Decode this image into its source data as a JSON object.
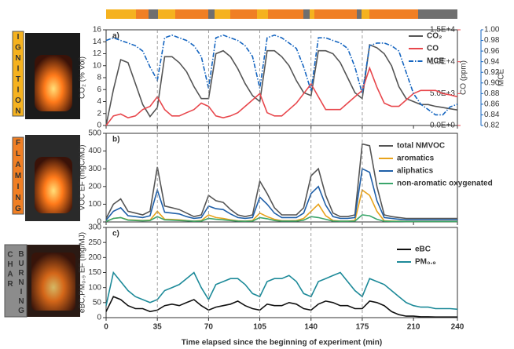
{
  "side_labels": [
    "IGNITION",
    "FLAMING",
    "CHAR",
    "BURNING"
  ],
  "chart_data": [
    {
      "type": "line",
      "panel_label": "a)",
      "ylabel": "CO₂ (% Vol)",
      "y2label": "CO (ppm)",
      "y3label": "MCE",
      "legend_position": "upper right",
      "xlim": [
        0,
        240
      ],
      "x": [
        0,
        5,
        10,
        15,
        20,
        25,
        30,
        35,
        40,
        45,
        50,
        55,
        60,
        65,
        70,
        75,
        80,
        85,
        90,
        95,
        100,
        105,
        110,
        115,
        120,
        125,
        130,
        135,
        140,
        145,
        150,
        155,
        160,
        165,
        170,
        175,
        180,
        185,
        190,
        195,
        200,
        205,
        210,
        215,
        220,
        225,
        230,
        235,
        240
      ],
      "ylim": [
        0,
        16
      ],
      "yticks": [
        0,
        2,
        4,
        6,
        8,
        10,
        12,
        14,
        16
      ],
      "y2lim": [
        0,
        15000
      ],
      "y2ticks": [
        {
          "value": 0,
          "label": "0.0E+0"
        },
        {
          "value": 5000,
          "label": "5.0E+3"
        },
        {
          "value": 10000,
          "label": "1.0E+4"
        },
        {
          "value": 15000,
          "label": "1.5E+4"
        }
      ],
      "y3lim": [
        0.82,
        1.0
      ],
      "y3ticks": [
        0.82,
        0.84,
        0.86,
        0.88,
        {
          "value": 0.9,
          "label": "0.90"
        },
        0.92,
        0.94,
        0.96,
        0.98,
        {
          "value": 1.0,
          "label": "1.00"
        }
      ],
      "series": [
        {
          "name": "CO₂",
          "color": "#555555",
          "axis": "y",
          "style": "solid",
          "values": [
            0,
            6,
            11,
            10.5,
            7,
            3.5,
            1.5,
            3,
            11.5,
            11.5,
            10.5,
            9,
            6.5,
            4.5,
            4.5,
            12,
            12.5,
            11.5,
            9.5,
            7,
            5,
            4,
            12.5,
            12.5,
            11.5,
            10,
            7.5,
            5.5,
            5,
            12.5,
            12.5,
            12,
            10.5,
            8,
            5.5,
            4.5,
            13.5,
            13,
            12,
            10,
            6.5,
            4.5,
            4,
            3.5,
            3.5,
            3.2,
            3,
            2.8,
            2.6
          ]
        },
        {
          "name": "CO",
          "color": "#e8474c",
          "axis": "y2",
          "style": "solid",
          "values": [
            0,
            1500,
            1800,
            1200,
            1500,
            2500,
            3000,
            4500,
            2500,
            1500,
            1500,
            2000,
            2500,
            3500,
            3000,
            1500,
            1200,
            1500,
            2000,
            3000,
            4000,
            5000,
            2000,
            1500,
            1500,
            2500,
            3500,
            5000,
            6500,
            4500,
            2500,
            2500,
            2500,
            3500,
            4500,
            5500,
            9000,
            6000,
            3500,
            3000,
            3000,
            4000,
            5000,
            5500,
            5500,
            5500,
            5000,
            4800,
            4500
          ]
        },
        {
          "name": "MCE",
          "color": "#1565c0",
          "axis": "y3",
          "style": "dashdot",
          "values": [
            0.98,
            0.985,
            0.98,
            0.975,
            0.97,
            0.96,
            0.93,
            0.905,
            0.985,
            0.99,
            0.985,
            0.98,
            0.97,
            0.95,
            0.89,
            0.985,
            0.99,
            0.985,
            0.98,
            0.97,
            0.95,
            0.89,
            0.985,
            0.99,
            0.985,
            0.975,
            0.965,
            0.93,
            0.885,
            0.985,
            0.985,
            0.98,
            0.975,
            0.965,
            0.93,
            0.88,
            0.97,
            0.975,
            0.975,
            0.97,
            0.96,
            0.92,
            0.88,
            0.86,
            0.85,
            0.84,
            0.84,
            0.855,
            0.86
          ]
        }
      ]
    },
    {
      "type": "line",
      "panel_label": "b)",
      "ylabel": "VOC EF (mgC/MJ)",
      "legend_position": "upper right",
      "xlim": [
        0,
        240
      ],
      "x": [
        0,
        5,
        10,
        15,
        20,
        25,
        30,
        35,
        40,
        45,
        50,
        55,
        60,
        65,
        70,
        75,
        80,
        85,
        90,
        95,
        100,
        105,
        110,
        115,
        120,
        125,
        130,
        135,
        140,
        145,
        150,
        155,
        160,
        165,
        170,
        175,
        180,
        185,
        190,
        195,
        200,
        205,
        210,
        215,
        220,
        225,
        230,
        235,
        240
      ],
      "ylim": [
        0,
        500
      ],
      "yticks": [
        0,
        100,
        200,
        300,
        400,
        500
      ],
      "series": [
        {
          "name": "total NMVOC",
          "color": "#555555",
          "axis": "y",
          "style": "solid",
          "values": [
            20,
            100,
            130,
            60,
            50,
            40,
            60,
            310,
            90,
            80,
            70,
            50,
            30,
            40,
            150,
            120,
            110,
            70,
            40,
            30,
            40,
            230,
            160,
            80,
            40,
            40,
            40,
            80,
            260,
            300,
            150,
            50,
            30,
            30,
            40,
            440,
            430,
            200,
            40,
            30,
            25,
            20,
            20,
            20,
            20,
            20,
            20,
            20,
            20
          ]
        },
        {
          "name": "aromatics",
          "color": "#e8a31c",
          "axis": "y",
          "style": "solid",
          "values": [
            3,
            20,
            25,
            12,
            10,
            8,
            10,
            60,
            15,
            14,
            12,
            8,
            5,
            8,
            40,
            25,
            20,
            12,
            6,
            5,
            8,
            50,
            30,
            15,
            7,
            7,
            8,
            20,
            60,
            100,
            35,
            8,
            5,
            5,
            8,
            180,
            150,
            60,
            6,
            5,
            4,
            3,
            3,
            3,
            3,
            3,
            3,
            3,
            3
          ]
        },
        {
          "name": "aliphatics",
          "color": "#1f5fa8",
          "axis": "y",
          "style": "solid",
          "values": [
            10,
            60,
            80,
            35,
            30,
            25,
            35,
            180,
            55,
            50,
            45,
            30,
            20,
            25,
            90,
            75,
            70,
            45,
            25,
            20,
            25,
            140,
            100,
            50,
            25,
            25,
            25,
            50,
            160,
            200,
            95,
            30,
            20,
            20,
            25,
            300,
            280,
            120,
            25,
            20,
            15,
            12,
            12,
            12,
            12,
            12,
            12,
            12,
            12
          ]
        },
        {
          "name": "non-aromatic oxygenated",
          "color": "#3aa56b",
          "axis": "y",
          "style": "solid",
          "values": [
            2,
            20,
            25,
            10,
            8,
            6,
            8,
            30,
            12,
            10,
            8,
            6,
            4,
            5,
            20,
            15,
            12,
            8,
            5,
            4,
            5,
            25,
            18,
            8,
            5,
            5,
            5,
            10,
            30,
            25,
            15,
            5,
            4,
            4,
            5,
            40,
            35,
            15,
            4,
            3,
            3,
            2,
            2,
            2,
            2,
            2,
            2,
            2,
            2
          ]
        }
      ]
    },
    {
      "type": "line",
      "panel_label": "c)",
      "ylabel": "eBC,PM₀.₉ EF (mg/MJ)",
      "legend_position": "upper right",
      "xlabel": "Time elapsed since the beginning of experiment (min)",
      "xlim": [
        0,
        240
      ],
      "xticks": [
        0,
        35,
        70,
        105,
        140,
        175,
        210,
        240
      ],
      "vlines": [
        35,
        70,
        105,
        140,
        175
      ],
      "x": [
        0,
        5,
        10,
        15,
        20,
        25,
        30,
        35,
        40,
        45,
        50,
        55,
        60,
        65,
        70,
        75,
        80,
        85,
        90,
        95,
        100,
        105,
        110,
        115,
        120,
        125,
        130,
        135,
        140,
        145,
        150,
        155,
        160,
        165,
        170,
        175,
        180,
        185,
        190,
        195,
        200,
        205,
        210,
        215,
        220,
        225,
        230,
        235,
        240
      ],
      "ylim": [
        0,
        300
      ],
      "yticks": [
        0,
        50,
        100,
        150,
        200,
        250,
        300
      ],
      "series": [
        {
          "name": "eBC",
          "color": "#111111",
          "axis": "y",
          "style": "solid",
          "values": [
            20,
            70,
            60,
            40,
            30,
            30,
            20,
            25,
            40,
            45,
            40,
            50,
            60,
            40,
            25,
            35,
            40,
            45,
            55,
            40,
            30,
            25,
            45,
            40,
            40,
            50,
            45,
            30,
            25,
            45,
            55,
            50,
            40,
            40,
            30,
            30,
            55,
            50,
            40,
            20,
            10,
            5,
            5,
            3,
            3,
            2,
            2,
            2,
            2
          ]
        },
        {
          "name": "PM₀.₉",
          "color": "#1d8a99",
          "axis": "y",
          "style": "solid",
          "values": [
            40,
            150,
            120,
            90,
            70,
            60,
            50,
            60,
            90,
            100,
            110,
            130,
            150,
            100,
            60,
            110,
            120,
            130,
            130,
            110,
            80,
            70,
            120,
            130,
            130,
            140,
            120,
            80,
            70,
            120,
            130,
            140,
            150,
            120,
            90,
            70,
            130,
            120,
            110,
            90,
            70,
            50,
            40,
            35,
            35,
            30,
            30,
            30,
            28
          ]
        }
      ]
    }
  ]
}
